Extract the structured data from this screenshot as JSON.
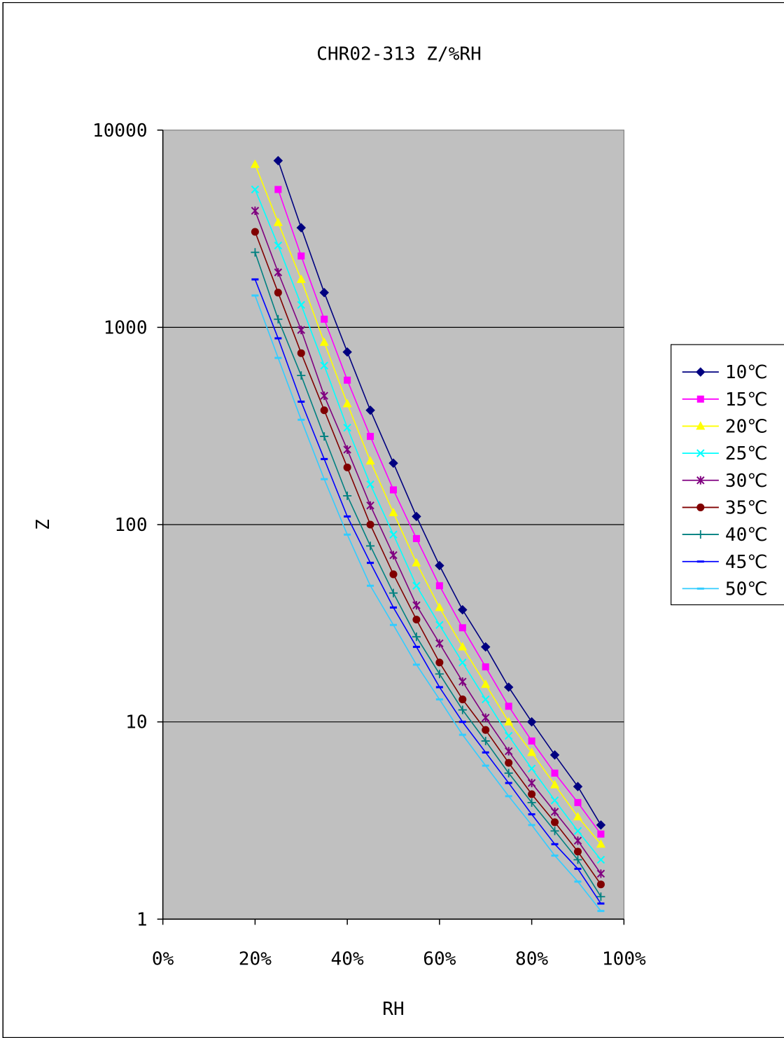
{
  "chart_data": {
    "type": "line",
    "title": "CHR02-313 Z/%RH",
    "xlabel": "RH",
    "ylabel": "Z",
    "x_scale": "linear",
    "y_scale": "log",
    "xlim": [
      0,
      1
    ],
    "ylim": [
      1,
      10000
    ],
    "x_ticks": [
      "0%",
      "20%",
      "40%",
      "60%",
      "80%",
      "100%"
    ],
    "y_ticks": [
      "1",
      "10",
      "100",
      "1000",
      "10000"
    ],
    "grid": "horizontal major",
    "legend_position": "right",
    "plot_background": "#c0c0c0",
    "series": [
      {
        "name": "10℃",
        "color": "#000080",
        "marker": "diamond",
        "x": [
          0.25,
          0.3,
          0.35,
          0.4,
          0.45,
          0.5,
          0.55,
          0.6,
          0.65,
          0.7,
          0.75,
          0.8,
          0.85,
          0.9,
          0.95
        ],
        "values": [
          7000,
          3200,
          1500,
          750,
          380,
          205,
          110,
          62,
          37,
          24,
          15,
          10,
          6.8,
          4.7,
          3.0
        ]
      },
      {
        "name": "15℃",
        "color": "#ff00ff",
        "marker": "square",
        "x": [
          0.25,
          0.3,
          0.35,
          0.4,
          0.45,
          0.5,
          0.55,
          0.6,
          0.65,
          0.7,
          0.75,
          0.8,
          0.85,
          0.9,
          0.95
        ],
        "values": [
          5000,
          2300,
          1100,
          540,
          280,
          150,
          85,
          49,
          30,
          19,
          12,
          8.0,
          5.5,
          3.9,
          2.7
        ]
      },
      {
        "name": "20℃",
        "color": "#ffff00",
        "marker": "triangle",
        "x": [
          0.2,
          0.25,
          0.3,
          0.35,
          0.4,
          0.45,
          0.5,
          0.55,
          0.6,
          0.65,
          0.7,
          0.75,
          0.8,
          0.85,
          0.9,
          0.95
        ],
        "values": [
          6700,
          3400,
          1750,
          840,
          410,
          210,
          115,
          64,
          38,
          24,
          15.5,
          10,
          7.0,
          4.8,
          3.3,
          2.4
        ]
      },
      {
        "name": "25℃",
        "color": "#00ffff",
        "marker": "x",
        "x": [
          0.2,
          0.25,
          0.3,
          0.35,
          0.4,
          0.45,
          0.5,
          0.55,
          0.6,
          0.65,
          0.7,
          0.75,
          0.8,
          0.85,
          0.9,
          0.95
        ],
        "values": [
          5000,
          2600,
          1300,
          640,
          310,
          160,
          89,
          49,
          31,
          20,
          13,
          8.5,
          5.8,
          4.0,
          2.8,
          2.0
        ]
      },
      {
        "name": "30℃",
        "color": "#800080",
        "marker": "asterisk",
        "x": [
          0.2,
          0.25,
          0.3,
          0.35,
          0.4,
          0.45,
          0.5,
          0.55,
          0.6,
          0.65,
          0.7,
          0.75,
          0.8,
          0.85,
          0.9,
          0.95
        ],
        "values": [
          3900,
          1900,
          970,
          450,
          240,
          125,
          70,
          39,
          25,
          16,
          10.5,
          7.1,
          4.9,
          3.5,
          2.5,
          1.7
        ]
      },
      {
        "name": "35℃",
        "color": "#800000",
        "marker": "circle",
        "x": [
          0.2,
          0.25,
          0.3,
          0.35,
          0.4,
          0.45,
          0.5,
          0.55,
          0.6,
          0.65,
          0.7,
          0.75,
          0.8,
          0.85,
          0.9,
          0.95
        ],
        "values": [
          3050,
          1500,
          740,
          380,
          195,
          100,
          56,
          33,
          20,
          13,
          9.1,
          6.2,
          4.3,
          3.1,
          2.2,
          1.5
        ]
      },
      {
        "name": "40℃",
        "color": "#008080",
        "marker": "plus",
        "x": [
          0.2,
          0.25,
          0.3,
          0.35,
          0.4,
          0.45,
          0.5,
          0.55,
          0.6,
          0.65,
          0.7,
          0.75,
          0.8,
          0.85,
          0.9,
          0.95
        ],
        "values": [
          2400,
          1100,
          570,
          280,
          140,
          78,
          45,
          27,
          17.5,
          11.5,
          8.0,
          5.5,
          3.9,
          2.8,
          2.0,
          1.3
        ]
      },
      {
        "name": "45℃",
        "color": "#0000ff",
        "marker": "dash",
        "x": [
          0.2,
          0.25,
          0.3,
          0.35,
          0.4,
          0.45,
          0.5,
          0.55,
          0.6,
          0.65,
          0.7,
          0.75,
          0.8,
          0.85,
          0.9,
          0.95
        ],
        "values": [
          1750,
          880,
          420,
          215,
          110,
          64,
          38,
          24,
          15,
          10,
          7.0,
          4.9,
          3.4,
          2.4,
          1.8,
          1.2
        ]
      },
      {
        "name": "50℃",
        "color": "#33ccff",
        "marker": "dash",
        "x": [
          0.2,
          0.25,
          0.3,
          0.35,
          0.4,
          0.45,
          0.5,
          0.55,
          0.6,
          0.65,
          0.7,
          0.75,
          0.8,
          0.85,
          0.9,
          0.95
        ],
        "values": [
          1450,
          700,
          340,
          170,
          89,
          49,
          31,
          19.5,
          13,
          8.6,
          6.0,
          4.2,
          3.0,
          2.1,
          1.55,
          1.1
        ]
      }
    ]
  }
}
